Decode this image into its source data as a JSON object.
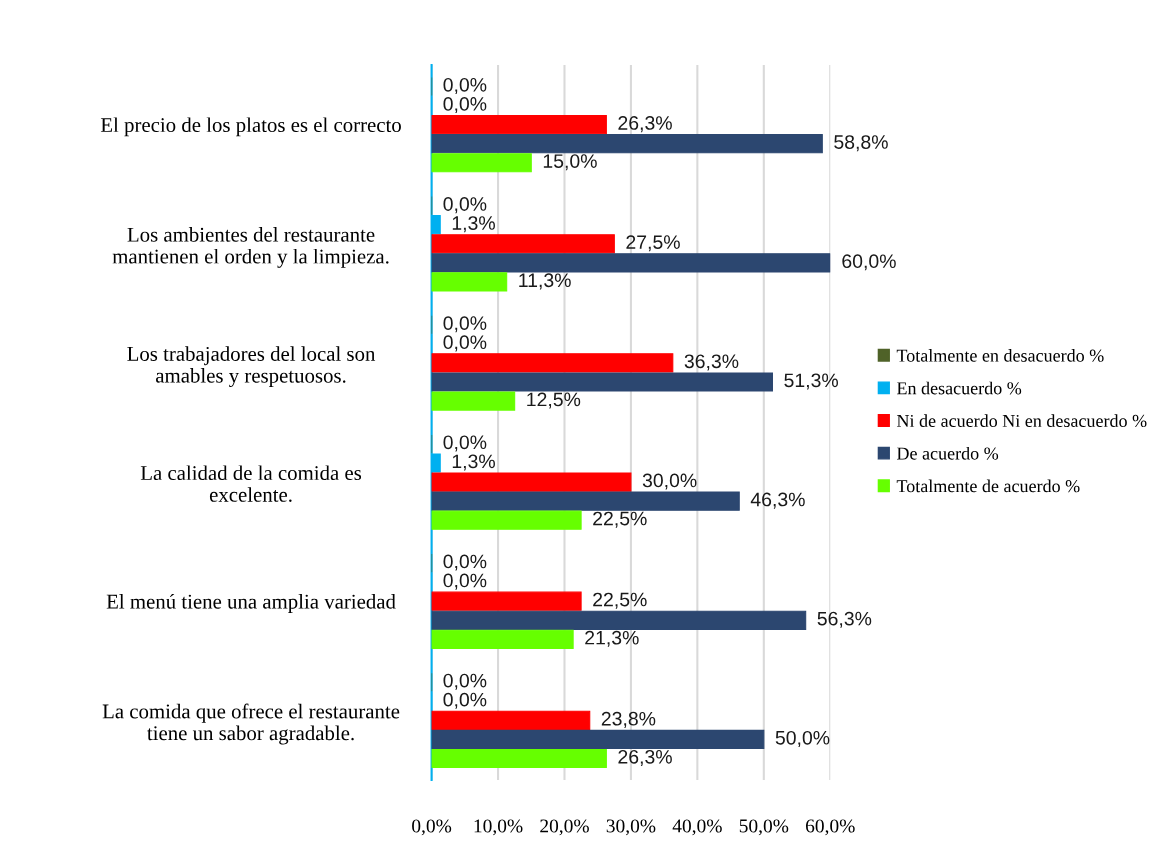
{
  "chart_data": {
    "type": "bar",
    "orientation": "horizontal",
    "categories": [
      "El precio de los platos es el correcto",
      "Los ambientes del restaurante\nmantienen el orden y la limpieza.",
      "Los trabajadores del local son\namables y respetuosos.",
      "La calidad de la comida es\nexcelente.",
      "El menú tiene una amplia variedad",
      "La comida que ofrece el restaurante\ntiene un sabor agradable."
    ],
    "series": [
      {
        "name": "Totalmente en desacuerdo %",
        "color": "#4f6228",
        "values": [
          0.0,
          0.0,
          0.0,
          0.0,
          0.0,
          0.0
        ],
        "value_labels": [
          "0,0%",
          "0,0%",
          "0,0%",
          "0,0%",
          "0,0%",
          "0,0%"
        ]
      },
      {
        "name": "En desacuerdo %",
        "color": "#00b0f0",
        "values": [
          0.0,
          1.3,
          0.0,
          1.3,
          0.0,
          0.0
        ],
        "value_labels": [
          "0,0%",
          "1,3%",
          "0,0%",
          "1,3%",
          "0,0%",
          "0,0%"
        ]
      },
      {
        "name": "Ni de acuerdo Ni en desacuerdo %",
        "color": "#ff0000",
        "values": [
          26.3,
          27.5,
          36.3,
          30.0,
          22.5,
          23.8
        ],
        "value_labels": [
          "26,3%",
          "27,5%",
          "36,3%",
          "30,0%",
          "22,5%",
          "23,8%"
        ]
      },
      {
        "name": "De acuerdo %",
        "color": "#2c4770",
        "values": [
          58.8,
          60.0,
          51.3,
          46.3,
          56.3,
          50.0
        ],
        "value_labels": [
          "58,8%",
          "60,0%",
          "51,3%",
          "46,3%",
          "56,3%",
          "50,0%"
        ]
      },
      {
        "name": "Totalmente de acuerdo %",
        "color": "#66ff00",
        "values": [
          15.0,
          11.3,
          12.5,
          22.5,
          21.3,
          26.3
        ],
        "value_labels": [
          "15,0%",
          "11,3%",
          "12,5%",
          "22,5%",
          "21,3%",
          "26,3%"
        ]
      }
    ],
    "xlim": [
      0,
      60
    ],
    "xticks": [
      {
        "value": 0,
        "label": "0,0%"
      },
      {
        "value": 10,
        "label": "10,0%"
      },
      {
        "value": 20,
        "label": "20,0%"
      },
      {
        "value": 30,
        "label": "30,0%"
      },
      {
        "value": 40,
        "label": "40,0%"
      },
      {
        "value": 50,
        "label": "50,0%"
      },
      {
        "value": 60,
        "label": "60,0%"
      }
    ],
    "grid": "x",
    "legend": "right"
  }
}
